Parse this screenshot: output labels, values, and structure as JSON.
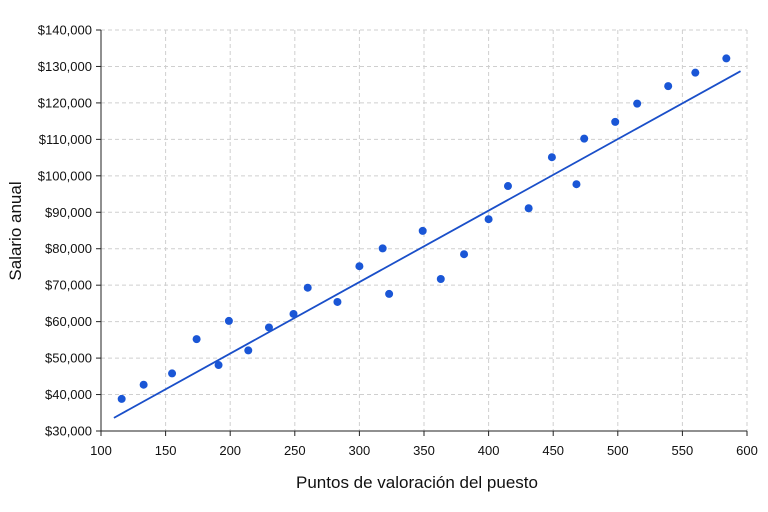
{
  "chart_data": {
    "type": "scatter",
    "title": "",
    "xlabel": "Puntos de valoración del puesto",
    "ylabel": "Salario anual",
    "xlim": [
      100,
      600
    ],
    "ylim": [
      30000,
      140000
    ],
    "x_ticks": [
      100,
      150,
      200,
      250,
      300,
      350,
      400,
      450,
      500,
      550,
      600
    ],
    "y_ticks": [
      30000,
      40000,
      50000,
      60000,
      70000,
      80000,
      90000,
      100000,
      110000,
      120000,
      130000,
      140000
    ],
    "x_tick_labels": [
      "100",
      "150",
      "200",
      "250",
      "300",
      "350",
      "400",
      "450",
      "500",
      "550",
      "600"
    ],
    "y_tick_labels": [
      "$30,000",
      "$40,000",
      "$50,000",
      "$60,000",
      "$70,000",
      "$80,000",
      "$90,000",
      "$100,000",
      "$110,000",
      "$120,000",
      "$130,000",
      "$140,000"
    ],
    "grid": true,
    "colors": {
      "points": "#1a56d6",
      "trend_line": "#1a4fc9"
    },
    "points": [
      {
        "x": 116,
        "y": 38800
      },
      {
        "x": 133,
        "y": 42700
      },
      {
        "x": 155,
        "y": 45800
      },
      {
        "x": 174,
        "y": 55200
      },
      {
        "x": 191,
        "y": 48100
      },
      {
        "x": 199,
        "y": 60200
      },
      {
        "x": 214,
        "y": 52100
      },
      {
        "x": 230,
        "y": 58400
      },
      {
        "x": 249,
        "y": 62100
      },
      {
        "x": 260,
        "y": 69300
      },
      {
        "x": 283,
        "y": 65400
      },
      {
        "x": 300,
        "y": 75200
      },
      {
        "x": 318,
        "y": 80100
      },
      {
        "x": 323,
        "y": 67600
      },
      {
        "x": 349,
        "y": 84900
      },
      {
        "x": 363,
        "y": 71700
      },
      {
        "x": 381,
        "y": 78500
      },
      {
        "x": 400,
        "y": 88100
      },
      {
        "x": 415,
        "y": 97200
      },
      {
        "x": 431,
        "y": 91100
      },
      {
        "x": 449,
        "y": 105100
      },
      {
        "x": 468,
        "y": 97700
      },
      {
        "x": 474,
        "y": 110200
      },
      {
        "x": 498,
        "y": 114800
      },
      {
        "x": 515,
        "y": 119800
      },
      {
        "x": 539,
        "y": 124600
      },
      {
        "x": 560,
        "y": 128300
      },
      {
        "x": 584,
        "y": 132200
      }
    ],
    "trend_line": {
      "x": [
        110,
        595
      ],
      "y": [
        33600,
        128700
      ]
    }
  }
}
